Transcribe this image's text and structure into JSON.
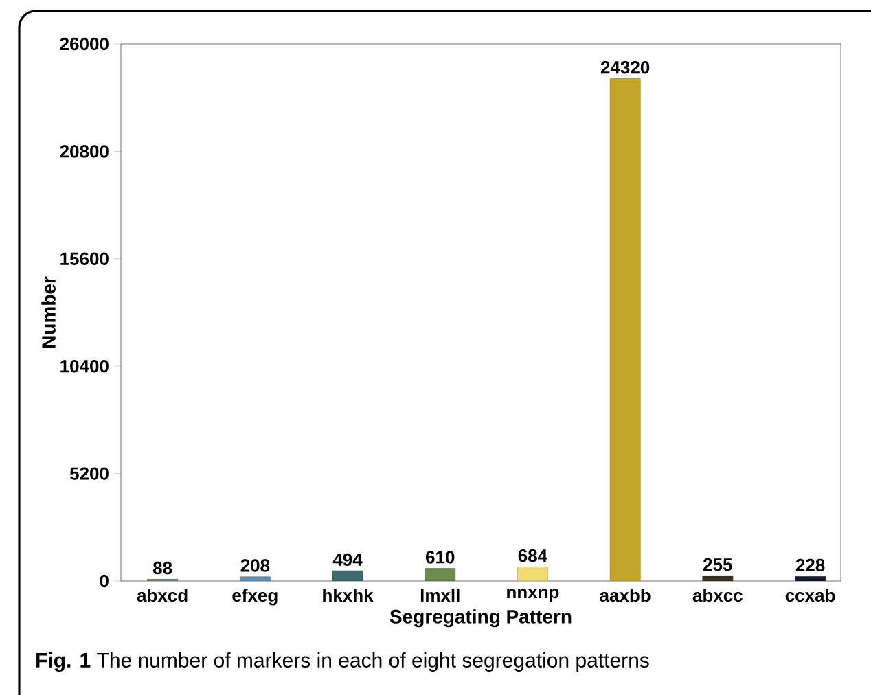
{
  "chart_data": {
    "type": "bar",
    "xlabel": "Segregating Pattern",
    "ylabel": "Number",
    "categories": [
      "abxcd",
      "efxeg",
      "hkxhk",
      "lmxll",
      "nnxnp",
      "aaxbb",
      "abxcc",
      "ccxab"
    ],
    "values": [
      88,
      208,
      494,
      610,
      684,
      24320,
      255,
      228
    ],
    "colors": [
      "#6f8f5e",
      "#5f8fb8",
      "#3f6a6e",
      "#6b8c4c",
      "#f0dc70",
      "#c2a526",
      "#3a2e1e",
      "#161a30"
    ],
    "ylim": [
      0,
      26000
    ],
    "yticks": [
      0,
      5200,
      10400,
      15600,
      20800,
      26000
    ],
    "data_labels": true,
    "grid": false,
    "annotations": [
      "**Fig. 1** The number of markers in each of eight segregation patterns"
    ]
  }
}
